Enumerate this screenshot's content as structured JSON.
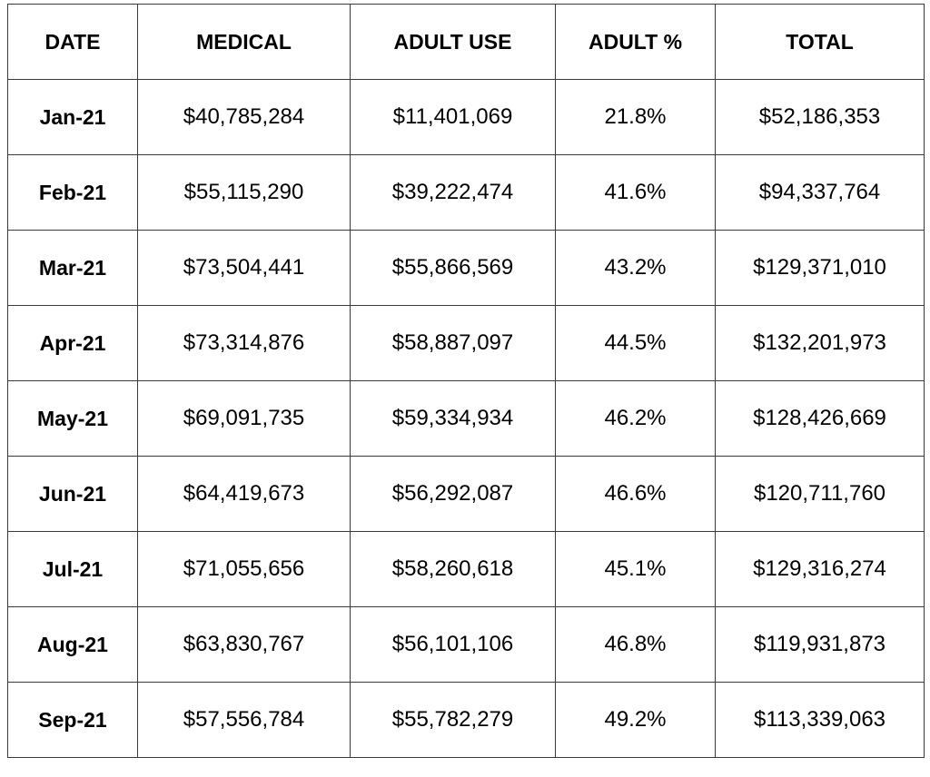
{
  "table": {
    "headers": [
      "DATE",
      "MEDICAL",
      "ADULT USE",
      "ADULT %",
      "TOTAL"
    ],
    "rows": [
      {
        "date": "Jan-21",
        "medical": "$40,785,284",
        "adult_use": "$11,401,069",
        "adult_pct": "21.8%",
        "total": "$52,186,353"
      },
      {
        "date": "Feb-21",
        "medical": "$55,115,290",
        "adult_use": "$39,222,474",
        "adult_pct": "41.6%",
        "total": "$94,337,764"
      },
      {
        "date": "Mar-21",
        "medical": "$73,504,441",
        "adult_use": "$55,866,569",
        "adult_pct": "43.2%",
        "total": "$129,371,010"
      },
      {
        "date": "Apr-21",
        "medical": "$73,314,876",
        "adult_use": "$58,887,097",
        "adult_pct": "44.5%",
        "total": "$132,201,973"
      },
      {
        "date": "May-21",
        "medical": "$69,091,735",
        "adult_use": "$59,334,934",
        "adult_pct": "46.2%",
        "total": "$128,426,669"
      },
      {
        "date": "Jun-21",
        "medical": "$64,419,673",
        "adult_use": "$56,292,087",
        "adult_pct": "46.6%",
        "total": "$120,711,760"
      },
      {
        "date": "Jul-21",
        "medical": "$71,055,656",
        "adult_use": "$58,260,618",
        "adult_pct": "45.1%",
        "total": "$129,316,274"
      },
      {
        "date": "Aug-21",
        "medical": "$63,830,767",
        "adult_use": "$56,101,106",
        "adult_pct": "46.8%",
        "total": "$119,931,873"
      },
      {
        "date": "Sep-21",
        "medical": "$57,556,784",
        "adult_use": "$55,782,279",
        "adult_pct": "49.2%",
        "total": "$113,339,063"
      }
    ]
  }
}
